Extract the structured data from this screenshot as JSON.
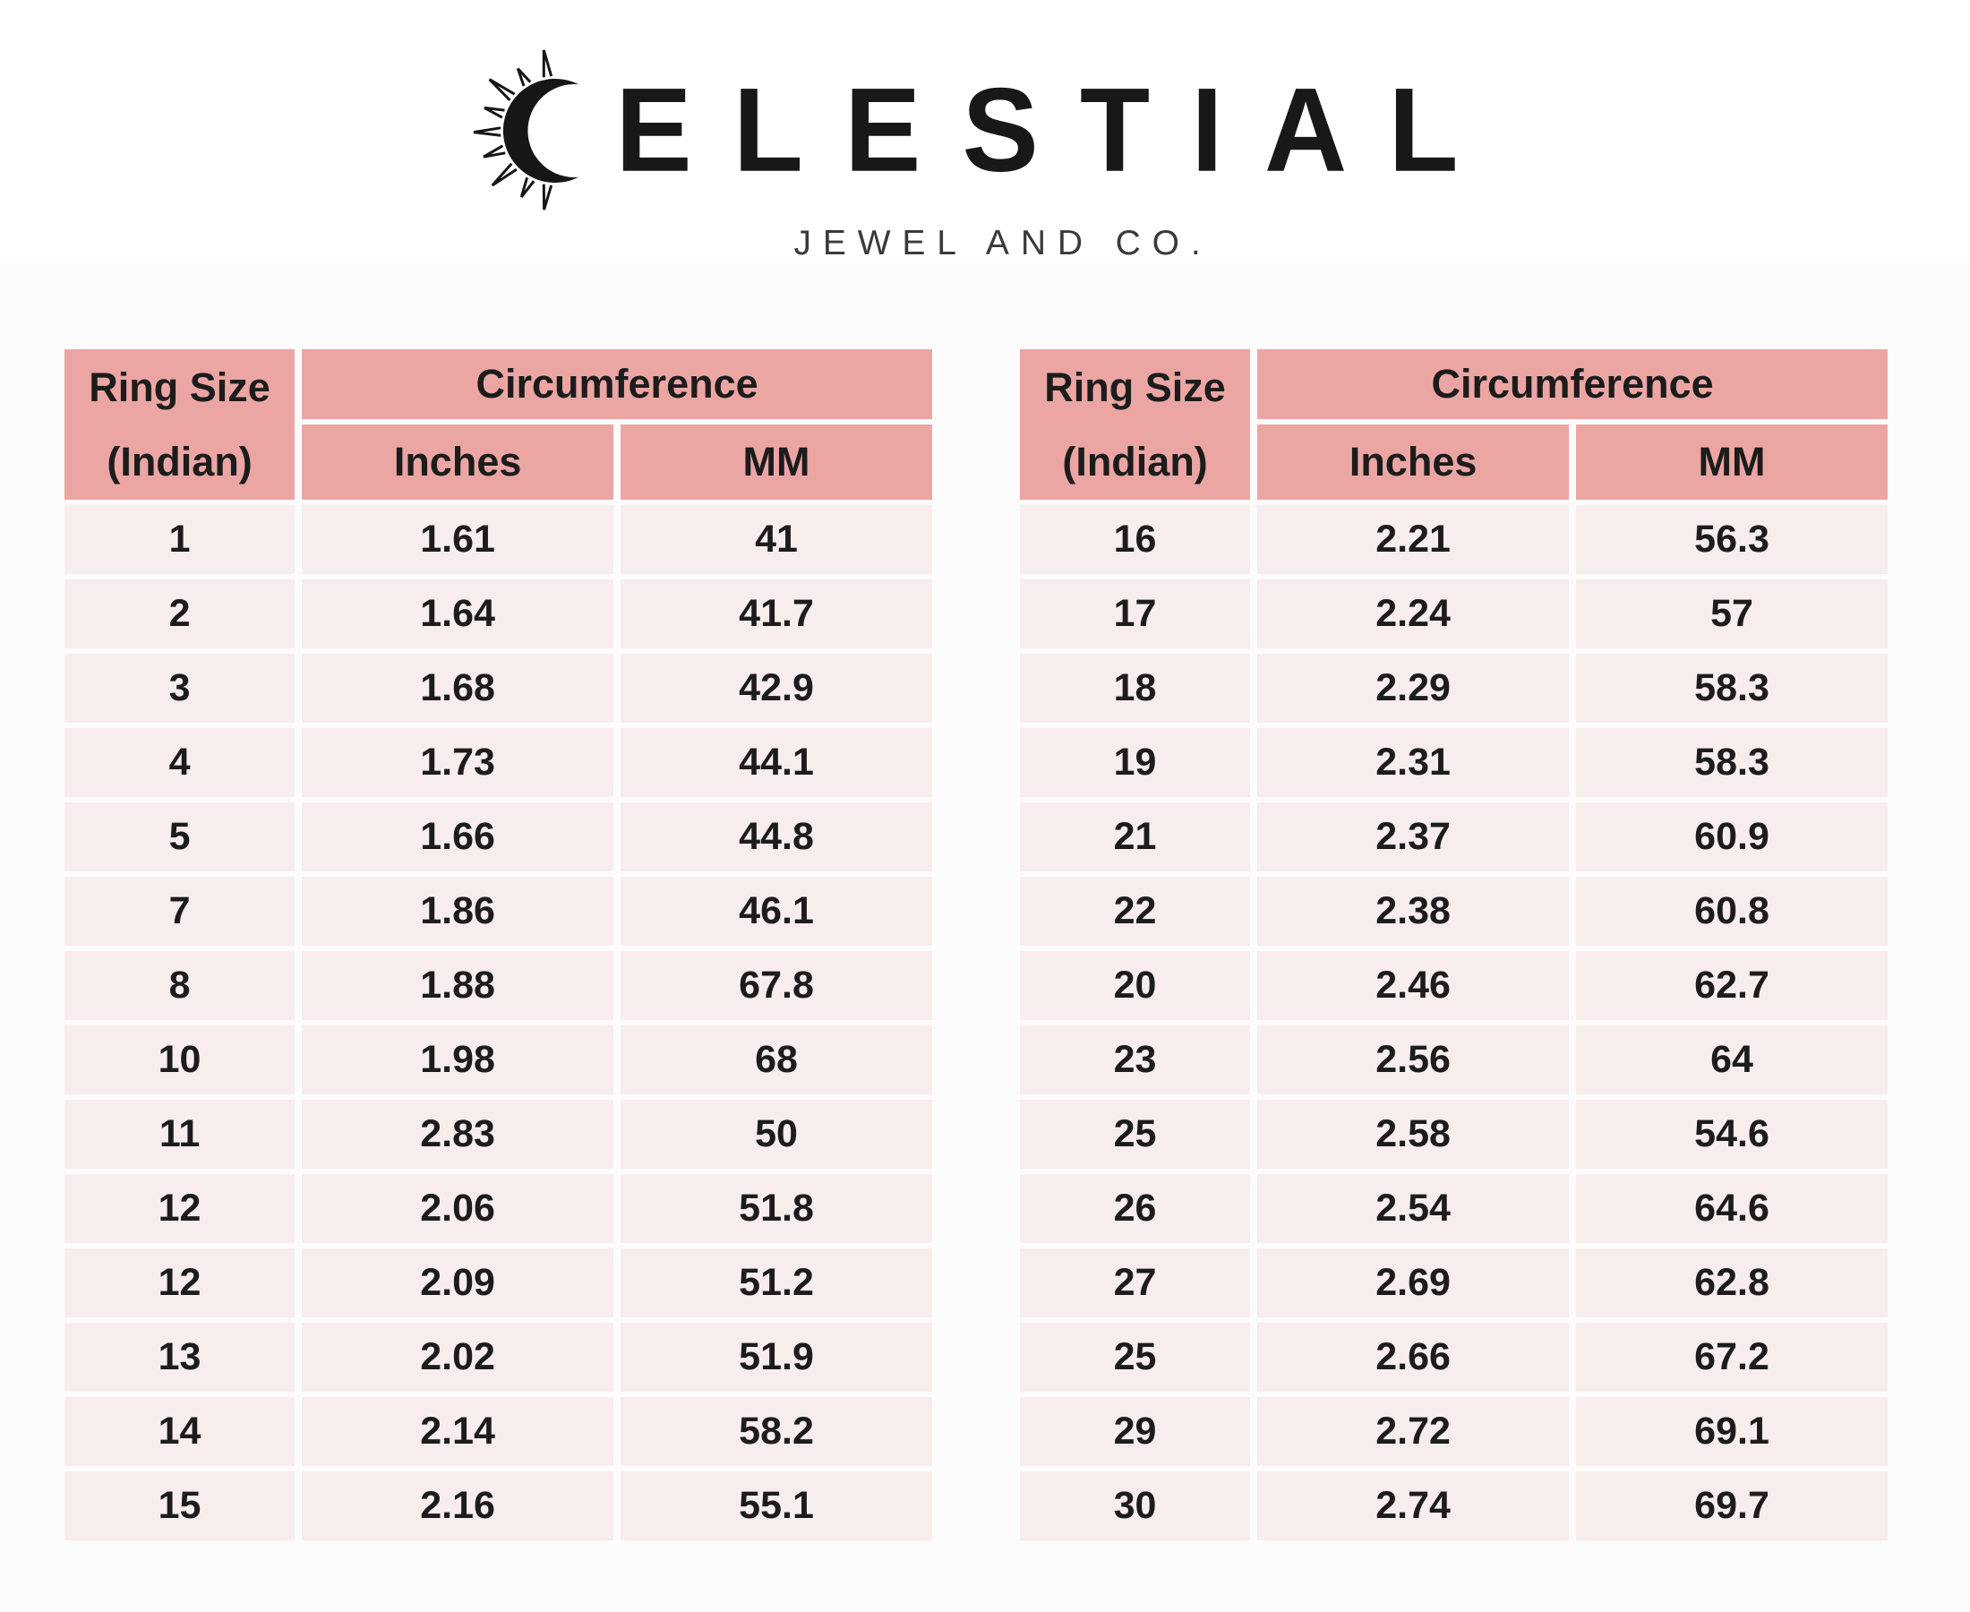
{
  "brand": {
    "wordmark_full": "CELESTIAL",
    "wordmark_after_icon": "ELESTIAL",
    "subtitle": "JEWEL AND CO.",
    "icon": "crescent-moon-with-sun-rays"
  },
  "colors": {
    "header_bg": "#eba6a4",
    "row_bg": "#f7edec",
    "gap": "#ffffff",
    "page_bg": "#fdfcfc",
    "text": "#1c1c1c",
    "logo_text": "#181818",
    "subtitle_text": "#3a3a3a"
  },
  "tables": [
    {
      "headers": {
        "ring_size_line1": "Ring Size",
        "ring_size_line2": "(Indian)",
        "circumference": "Circumference",
        "inches": "Inches",
        "mm": "MM"
      }
    },
    {
      "headers": {
        "ring_size_line1": "Ring Size",
        "ring_size_line2": "(Indian)",
        "circumference": "Circumference",
        "inches": "Inches",
        "mm": "MM"
      }
    }
  ],
  "chart_data": [
    {
      "type": "table",
      "columns": [
        "Ring Size (Indian)",
        "Circumference Inches",
        "Circumference MM"
      ],
      "rows": [
        [
          "1",
          "1.61",
          "41"
        ],
        [
          "2",
          "1.64",
          "41.7"
        ],
        [
          "3",
          "1.68",
          "42.9"
        ],
        [
          "4",
          "1.73",
          "44.1"
        ],
        [
          "5",
          "1.66",
          "44.8"
        ],
        [
          "7",
          "1.86",
          "46.1"
        ],
        [
          "8",
          "1.88",
          "67.8"
        ],
        [
          "10",
          "1.98",
          "68"
        ],
        [
          "11",
          "2.83",
          "50"
        ],
        [
          "12",
          "2.06",
          "51.8"
        ],
        [
          "12",
          "2.09",
          "51.2"
        ],
        [
          "13",
          "2.02",
          "51.9"
        ],
        [
          "14",
          "2.14",
          "58.2"
        ],
        [
          "15",
          "2.16",
          "55.1"
        ]
      ]
    },
    {
      "type": "table",
      "columns": [
        "Ring Size (Indian)",
        "Circumference Inches",
        "Circumference MM"
      ],
      "rows": [
        [
          "16",
          "2.21",
          "56.3"
        ],
        [
          "17",
          "2.24",
          "57"
        ],
        [
          "18",
          "2.29",
          "58.3"
        ],
        [
          "19",
          "2.31",
          "58.3"
        ],
        [
          "21",
          "2.37",
          "60.9"
        ],
        [
          "22",
          "2.38",
          "60.8"
        ],
        [
          "20",
          "2.46",
          "62.7"
        ],
        [
          "23",
          "2.56",
          "64"
        ],
        [
          "25",
          "2.58",
          "54.6"
        ],
        [
          "26",
          "2.54",
          "64.6"
        ],
        [
          "27",
          "2.69",
          "62.8"
        ],
        [
          "25",
          "2.66",
          "67.2"
        ],
        [
          "29",
          "2.72",
          "69.1"
        ],
        [
          "30",
          "2.74",
          "69.7"
        ]
      ]
    }
  ]
}
